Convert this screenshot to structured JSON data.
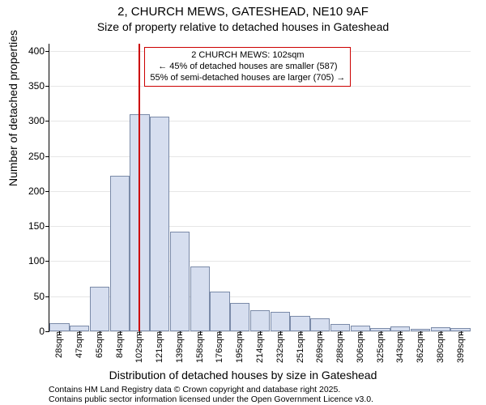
{
  "header": {
    "title": "2, CHURCH MEWS, GATESHEAD, NE10 9AF",
    "subtitle": "Size of property relative to detached houses in Gateshead"
  },
  "chart": {
    "type": "histogram",
    "ylabel": "Number of detached properties",
    "xlabel": "Distribution of detached houses by size in Gateshead",
    "ylim": [
      0,
      410
    ],
    "yticks": [
      0,
      50,
      100,
      150,
      200,
      250,
      300,
      350,
      400
    ],
    "grid_color": "#e6e6e6",
    "bar_fill": "#d6deef",
    "bar_border": "#7a8aa8",
    "bar_width": 0.98,
    "background_color": "#ffffff",
    "categories": [
      "28sqm",
      "47sqm",
      "65sqm",
      "84sqm",
      "102sqm",
      "121sqm",
      "139sqm",
      "158sqm",
      "176sqm",
      "195sqm",
      "214sqm",
      "232sqm",
      "251sqm",
      "269sqm",
      "288sqm",
      "306sqm",
      "325sqm",
      "343sqm",
      "362sqm",
      "380sqm",
      "399sqm"
    ],
    "values": [
      11,
      8,
      64,
      222,
      310,
      306,
      142,
      92,
      57,
      41,
      30,
      28,
      22,
      19,
      10,
      8,
      5,
      7,
      4,
      6,
      5
    ],
    "reference": {
      "index": 4,
      "color": "#cc0000",
      "width": 2
    },
    "annotation": {
      "lines": [
        "2 CHURCH MEWS: 102sqm",
        "← 45% of detached houses are smaller (587)",
        "55% of semi-detached houses are larger (705) →"
      ],
      "border_color": "#cc0000"
    },
    "label_fontsize": 14,
    "tick_fontsize": 12
  },
  "attribution": {
    "line1": "Contains HM Land Registry data © Crown copyright and database right 2025.",
    "line2": "Contains public sector information licensed under the Open Government Licence v3.0."
  }
}
